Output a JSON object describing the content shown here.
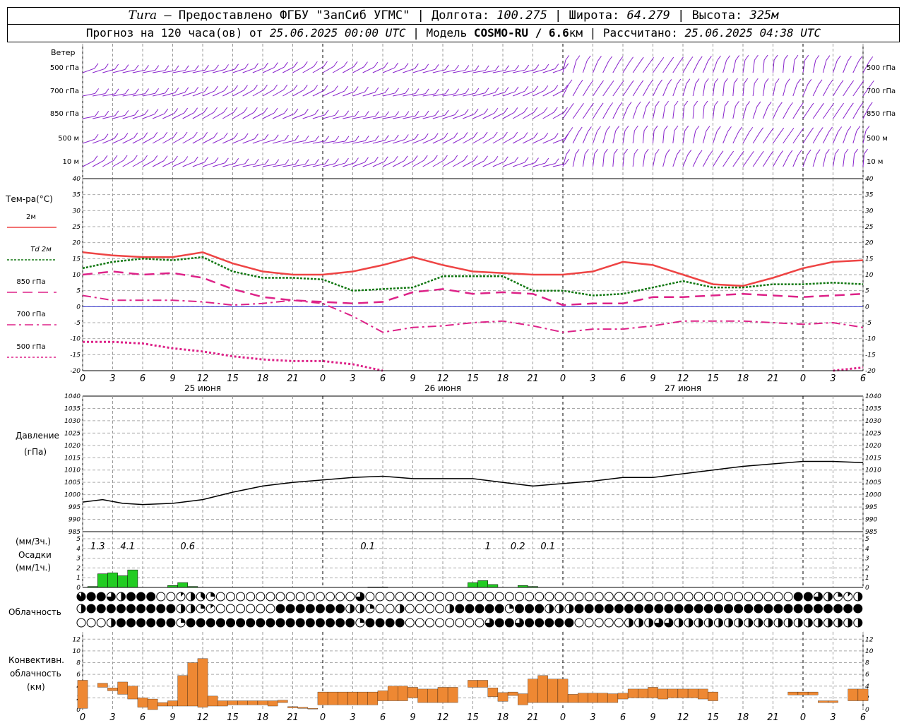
{
  "header": {
    "station": "Tura",
    "provider": " — Предоставлено ФГБУ \"ЗапСиб УГМС\" | Долгота: ",
    "lon": "100.275",
    "lat_label": " | Широта: ",
    "lat": "64.279",
    "alt_label": " | Высота: ",
    "alt": "325м",
    "line2_a": "Прогноз на 120 часа(ов) от ",
    "issued": "25.06.2025 00:00 UTC",
    "line2_b": " | Модель ",
    "model": "COSMO-RU / 6.6",
    "line2_c": "км | Рассчитано: ",
    "computed": "25.06.2025 04:38 UTC"
  },
  "labels": {
    "wind": "Ветер",
    "wind_levels": [
      "500 гПа",
      "700 гПа",
      "850 гПа",
      "500  м",
      "10  м"
    ],
    "temp": "Тем-ра(°C)",
    "legend": [
      "2м",
      "Td  2м",
      "850 гПа",
      "700 гПа",
      "500 гПа"
    ],
    "pressure": [
      "Давление",
      "(гПа)"
    ],
    "precip": [
      "(мм/3ч.)",
      "Осадки",
      "(мм/1ч.)"
    ],
    "cloud": "Облачность",
    "conv": [
      "Конвективн.",
      "облачность",
      "(км)"
    ],
    "days": [
      "25 июня",
      "26 июня",
      "27 июня"
    ],
    "hour_ticks": [
      "0",
      "3",
      "6",
      "9",
      "12",
      "15",
      "18",
      "21",
      "0",
      "3",
      "6",
      "9",
      "12",
      "15",
      "18",
      "21",
      "0",
      "3",
      "6",
      "9",
      "12",
      "15",
      "18",
      "21",
      "0",
      "3",
      "6"
    ]
  },
  "colors": {
    "t2m": "#ee4444",
    "td2m": "#117711",
    "t850": "#dd2288",
    "t700": "#dd2288",
    "t500": "#dd2288",
    "wind": "#8822cc",
    "precip": "#22cc22",
    "conv": "#ee8833",
    "pressure": "#000000",
    "zero": "#3333cc"
  },
  "chart_data": [
    {
      "type": "line",
      "title": "Тем-ра(°C)",
      "x_unit": "hours since 25.06.2025 00:00 UTC",
      "ylim": [
        -20,
        40
      ],
      "series": [
        {
          "name": "2м",
          "x": [
            0,
            3,
            6,
            9,
            12,
            15,
            18,
            21,
            24,
            27,
            30,
            33,
            36,
            39,
            42,
            45,
            48,
            51,
            54,
            57,
            60,
            63,
            66,
            69,
            72,
            75,
            78
          ],
          "values": [
            17,
            16,
            15.5,
            15.5,
            17,
            13.5,
            11,
            10,
            10,
            11,
            13,
            15.5,
            13,
            11,
            10.5,
            10,
            10,
            11,
            14,
            13,
            10,
            7,
            6.5,
            9,
            12,
            14,
            14.5
          ]
        },
        {
          "name": "Td  2м",
          "x": [
            0,
            3,
            6,
            9,
            12,
            15,
            18,
            21,
            24,
            27,
            30,
            33,
            36,
            39,
            42,
            45,
            48,
            51,
            54,
            57,
            60,
            63,
            66,
            69,
            72,
            75,
            78
          ],
          "values": [
            12,
            14,
            15,
            14.5,
            15.5,
            11,
            9,
            9,
            8.5,
            5,
            5.5,
            6,
            9.5,
            9.5,
            9.5,
            5,
            5,
            3.5,
            4,
            6,
            8,
            6,
            6,
            7,
            7,
            7.5,
            7
          ]
        },
        {
          "name": "850 гПа",
          "x": [
            0,
            3,
            6,
            9,
            12,
            15,
            18,
            21,
            24,
            27,
            30,
            33,
            36,
            39,
            42,
            45,
            48,
            51,
            54,
            57,
            60,
            63,
            66,
            69,
            72,
            75,
            78
          ],
          "values": [
            10,
            11,
            10,
            10.5,
            9,
            5.5,
            3,
            2,
            1.5,
            1,
            1.5,
            4.5,
            5.5,
            4,
            4.5,
            4,
            0.5,
            1,
            1,
            3,
            3,
            3.5,
            4,
            3.5,
            3,
            3.5,
            4
          ]
        },
        {
          "name": "700 гПа",
          "x": [
            0,
            3,
            6,
            9,
            12,
            15,
            18,
            21,
            24,
            27,
            30,
            33,
            36,
            39,
            42,
            45,
            48,
            51,
            54,
            57,
            60,
            63,
            66,
            69,
            72,
            75,
            78
          ],
          "values": [
            3.5,
            2,
            2,
            2,
            1.5,
            0.5,
            1,
            2,
            1,
            -3,
            -8,
            -6.5,
            -6,
            -5,
            -4.5,
            -6,
            -8,
            -7,
            -7,
            -6,
            -4.5,
            -4.5,
            -4.5,
            -5,
            -5.5,
            -5,
            -6.5
          ]
        },
        {
          "name": "500 гПа",
          "x": [
            0,
            3,
            6,
            9,
            12,
            15,
            18,
            21,
            24,
            27,
            30,
            75,
            78
          ],
          "values": [
            -11,
            -11,
            -11.5,
            -13,
            -14,
            -15.5,
            -16.5,
            -17,
            -17,
            -18,
            -20,
            -20,
            -19
          ]
        }
      ]
    },
    {
      "type": "line",
      "title": "Давление (гПа)",
      "ylim": [
        985,
        1040
      ],
      "x": [
        0,
        2,
        4,
        6,
        9,
        12,
        15,
        18,
        21,
        24,
        27,
        30,
        33,
        36,
        39,
        42,
        45,
        48,
        51,
        54,
        57,
        60,
        63,
        66,
        69,
        72,
        75,
        78
      ],
      "values": [
        997,
        998,
        996.5,
        996,
        996.5,
        998,
        1001,
        1003.5,
        1005,
        1006,
        1007,
        1007.5,
        1006.5,
        1006.5,
        1006.5,
        1005,
        1003.5,
        1004.5,
        1005.5,
        1007,
        1007,
        1008.5,
        1010,
        1011.5,
        1012.5,
        1013.5,
        1013.5,
        1013
      ]
    },
    {
      "type": "bar",
      "title": "Осадки",
      "ylim": [
        0,
        5
      ],
      "hourly": [
        [
          1,
          0.1
        ],
        [
          2,
          1.4
        ],
        [
          3,
          1.5
        ],
        [
          4,
          1.2
        ],
        [
          5,
          1.8
        ],
        [
          9,
          0.2
        ],
        [
          10,
          0.5
        ],
        [
          11,
          0.1
        ],
        [
          29,
          0.05
        ],
        [
          30,
          0.05
        ],
        [
          39,
          0.5
        ],
        [
          40,
          0.7
        ],
        [
          41,
          0.3
        ],
        [
          44,
          0.2
        ],
        [
          45,
          0.1
        ]
      ],
      "three_hour_labels": [
        {
          "x": 1.5,
          "v": "1.3"
        },
        {
          "x": 4.5,
          "v": "4.1"
        },
        {
          "x": 10.5,
          "v": "0.6"
        },
        {
          "x": 28.5,
          "v": "0.1"
        },
        {
          "x": 40.5,
          "v": "1"
        },
        {
          "x": 43.5,
          "v": "0.2"
        },
        {
          "x": 46.5,
          "v": "0.1"
        }
      ]
    },
    {
      "type": "table",
      "title": "Облачность",
      "rows": [
        [
          7,
          8,
          8,
          6,
          4,
          8,
          8,
          8,
          0,
          0,
          1,
          4,
          3,
          2,
          0,
          0,
          0,
          0,
          0,
          0,
          0,
          0,
          0,
          0,
          0,
          0,
          0,
          0,
          6,
          0,
          0,
          0,
          0,
          0,
          0,
          0,
          0,
          0,
          0,
          0,
          0,
          0,
          0,
          0,
          0,
          0,
          0,
          0,
          0,
          0,
          0,
          0,
          0,
          0,
          0,
          0,
          0,
          0,
          0,
          0,
          0,
          0,
          0,
          0,
          0,
          0,
          0,
          0,
          0,
          0,
          0,
          0,
          8,
          8,
          6,
          4,
          2,
          1,
          4
        ],
        [
          4,
          8,
          8,
          8,
          8,
          8,
          8,
          8,
          8,
          8,
          4,
          4,
          2,
          1,
          0,
          0,
          0,
          0,
          0,
          0,
          8,
          8,
          8,
          8,
          8,
          8,
          8,
          4,
          4,
          2,
          0,
          0,
          4,
          0,
          0,
          0,
          0,
          4,
          8,
          8,
          8,
          8,
          8,
          2,
          8,
          8,
          8,
          4,
          4,
          4,
          8,
          8,
          8,
          8,
          8,
          8,
          8,
          8,
          8,
          8,
          8,
          8,
          8,
          8,
          8,
          8,
          8,
          8,
          8,
          8,
          8,
          8,
          8,
          8,
          8,
          8,
          8,
          8,
          8
        ],
        [
          0,
          0,
          0,
          4,
          8,
          8,
          8,
          8,
          8,
          8,
          2,
          8,
          8,
          8,
          8,
          8,
          8,
          8,
          8,
          8,
          8,
          8,
          8,
          8,
          8,
          8,
          8,
          8,
          2,
          8,
          8,
          8,
          8,
          0,
          0,
          0,
          0,
          0,
          0,
          0,
          0,
          6,
          8,
          8,
          6,
          8,
          8,
          8,
          8,
          8,
          0,
          0,
          0,
          0,
          0,
          4,
          4,
          4,
          6,
          6,
          4,
          4,
          4,
          4,
          4,
          4,
          4,
          4,
          4,
          4,
          4,
          4,
          4,
          4,
          4,
          4,
          4,
          4,
          4
        ]
      ]
    },
    {
      "type": "bar",
      "title": "Конвективн. облачность (км)",
      "ylim": [
        0,
        13
      ],
      "hourly": [
        [
          0,
          0.2,
          5
        ],
        [
          1,
          0,
          0
        ],
        [
          2,
          3.8,
          4.5
        ],
        [
          3,
          3.2,
          3.7
        ],
        [
          4,
          2.6,
          4.7
        ],
        [
          5,
          1.8,
          4
        ],
        [
          6,
          0.4,
          2
        ],
        [
          7,
          0,
          1.8
        ],
        [
          8,
          0.6,
          1.2
        ],
        [
          9,
          0.6,
          1.5
        ],
        [
          10,
          0.6,
          5.8
        ],
        [
          11,
          0.6,
          8
        ],
        [
          12,
          0.4,
          8.7
        ],
        [
          13,
          0.6,
          2.3
        ],
        [
          14,
          0.6,
          1.5
        ],
        [
          15,
          0.8,
          1.5
        ],
        [
          16,
          0.8,
          1.5
        ],
        [
          17,
          0.8,
          1.5
        ],
        [
          18,
          0.8,
          1.5
        ],
        [
          19,
          0.6,
          1.5
        ],
        [
          20,
          1.2,
          1.6
        ],
        [
          21,
          0.3,
          0.5
        ],
        [
          22,
          0.2,
          0.4
        ],
        [
          23,
          0.1,
          0.2
        ],
        [
          24,
          0.8,
          3
        ],
        [
          25,
          0.8,
          3
        ],
        [
          26,
          0.8,
          3
        ],
        [
          27,
          0.8,
          3
        ],
        [
          28,
          0.8,
          3
        ],
        [
          29,
          0.8,
          3
        ],
        [
          30,
          1.5,
          3.2
        ],
        [
          31,
          1.5,
          4
        ],
        [
          32,
          1.5,
          4
        ],
        [
          33,
          2,
          3.8
        ],
        [
          34,
          1.2,
          3.5
        ],
        [
          35,
          1.2,
          3.5
        ],
        [
          36,
          1.2,
          3.8
        ],
        [
          37,
          1.2,
          3.8
        ],
        [
          38,
          0,
          0
        ],
        [
          39,
          3.8,
          5
        ],
        [
          40,
          3.8,
          5
        ],
        [
          41,
          2.2,
          3.7
        ],
        [
          42,
          1.4,
          2.9
        ],
        [
          43,
          2.4,
          3
        ],
        [
          44,
          0.8,
          2.7
        ],
        [
          45,
          1.2,
          5.2
        ],
        [
          46,
          1.2,
          5.8
        ],
        [
          47,
          1.2,
          5.2
        ],
        [
          48,
          1.2,
          5.2
        ],
        [
          49,
          1.2,
          2.6
        ],
        [
          50,
          1.2,
          2.8
        ],
        [
          51,
          1.2,
          2.8
        ],
        [
          52,
          1.2,
          2.8
        ],
        [
          53,
          1.2,
          2.7
        ],
        [
          54,
          1.8,
          2.8
        ],
        [
          55,
          2,
          3.5
        ],
        [
          56,
          2,
          3.5
        ],
        [
          57,
          2,
          3.8
        ],
        [
          58,
          1.8,
          3.5
        ],
        [
          59,
          2,
          3.5
        ],
        [
          60,
          2,
          3.5
        ],
        [
          61,
          2,
          3.5
        ],
        [
          62,
          1.8,
          3.5
        ],
        [
          63,
          1.5,
          3
        ],
        [
          64,
          0,
          0
        ],
        [
          65,
          0,
          0
        ],
        [
          66,
          0,
          0
        ],
        [
          67,
          0,
          0
        ],
        [
          68,
          0,
          0
        ],
        [
          69,
          0,
          0
        ],
        [
          70,
          0,
          0
        ],
        [
          71,
          2.5,
          3
        ],
        [
          72,
          2.5,
          3
        ],
        [
          73,
          2.5,
          3
        ],
        [
          74,
          1.2,
          1.5
        ],
        [
          75,
          1.2,
          1.5
        ],
        [
          76,
          1.5,
          1.5
        ],
        [
          77,
          1.5,
          3.5
        ],
        [
          78,
          1.5,
          3.5
        ]
      ]
    }
  ]
}
